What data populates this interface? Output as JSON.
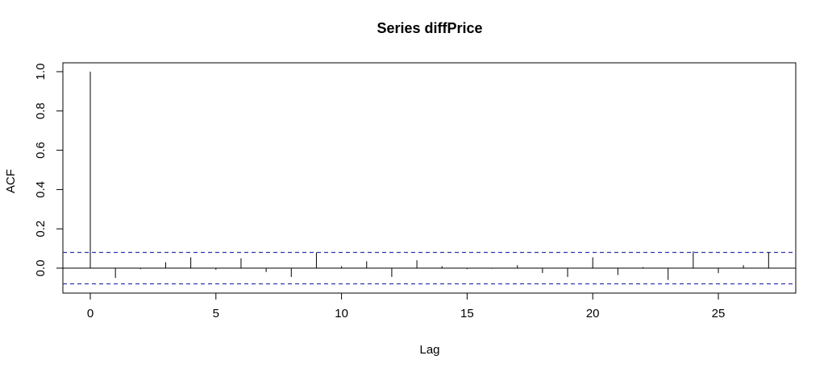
{
  "chart_data": {
    "type": "bar",
    "title": "Series  diffPrice",
    "xlabel": "Lag",
    "ylabel": "ACF",
    "xlim": [
      -1,
      28
    ],
    "ylim": [
      -0.12,
      1.0
    ],
    "x_ticks": [
      0,
      5,
      10,
      15,
      20,
      25
    ],
    "y_ticks": [
      0.0,
      0.2,
      0.4,
      0.6,
      0.8,
      1.0
    ],
    "x_tick_labels": [
      "0",
      "5",
      "10",
      "15",
      "20",
      "25"
    ],
    "y_tick_labels": [
      "0.0",
      "0.2",
      "0.4",
      "0.6",
      "0.8",
      "1.0"
    ],
    "lags": [
      0,
      1,
      2,
      3,
      4,
      5,
      6,
      7,
      8,
      9,
      10,
      11,
      12,
      13,
      14,
      15,
      16,
      17,
      18,
      19,
      20,
      21,
      22,
      23,
      24,
      25,
      26,
      27
    ],
    "acf": [
      1.0,
      -0.05,
      -0.005,
      0.03,
      0.055,
      -0.008,
      0.05,
      -0.02,
      -0.045,
      0.08,
      0.01,
      0.035,
      -0.045,
      0.04,
      0.01,
      -0.005,
      -0.003,
      0.015,
      -0.025,
      -0.045,
      0.055,
      -0.035,
      0.005,
      -0.06,
      0.085,
      -0.025,
      0.015,
      0.08
    ],
    "confidence_bound": 0.08,
    "confidence_line_color": "#3333aa",
    "grid": false
  }
}
